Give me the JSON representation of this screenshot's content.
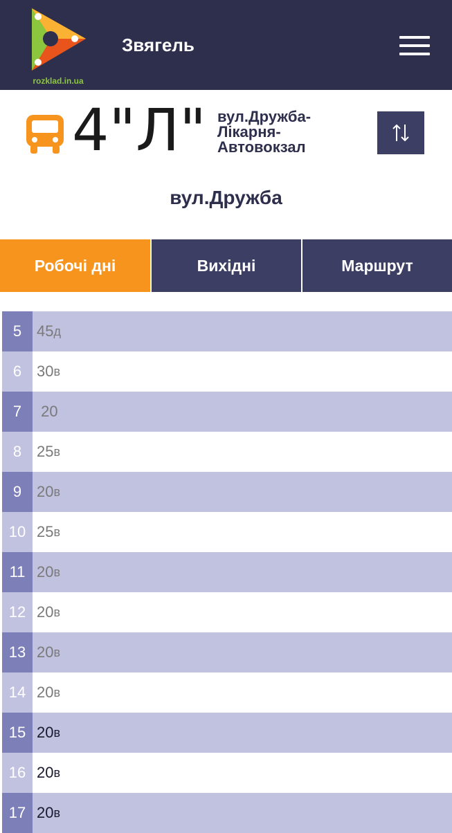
{
  "header": {
    "logo_text": "rozklad.in.ua",
    "city": "Звягель"
  },
  "route": {
    "number": "4\"Л\"",
    "name_lines": [
      "вул.Дружба-",
      "Лікарня-",
      "Автовокзал"
    ],
    "stop": "вул.Дружба"
  },
  "tabs": [
    {
      "label": "Робочі дні",
      "active": true
    },
    {
      "label": "Вихідні",
      "active": false
    },
    {
      "label": "Маршрут",
      "active": false
    }
  ],
  "schedule": [
    {
      "hour": "5",
      "minute": "45",
      "suffix": "д"
    },
    {
      "hour": "6",
      "minute": "30",
      "suffix": "в"
    },
    {
      "hour": "7",
      "minute": " 20",
      "suffix": ""
    },
    {
      "hour": "8",
      "minute": "25",
      "suffix": "в"
    },
    {
      "hour": "9",
      "minute": "20",
      "suffix": "в"
    },
    {
      "hour": "10",
      "minute": "25",
      "suffix": "в"
    },
    {
      "hour": "11",
      "minute": "20",
      "suffix": "в"
    },
    {
      "hour": "12",
      "minute": "20",
      "suffix": "в"
    },
    {
      "hour": "13",
      "minute": "20",
      "suffix": "в"
    },
    {
      "hour": "14",
      "minute": "20",
      "suffix": "в"
    },
    {
      "hour": "15",
      "minute": "20",
      "suffix": "в"
    },
    {
      "hour": "16",
      "minute": "20",
      "suffix": "в"
    },
    {
      "hour": "17",
      "minute": "20",
      "suffix": "в"
    }
  ],
  "colors": {
    "header_bg": "#2e2f4d",
    "accent_orange": "#f7941d",
    "tab_bg": "#3c3f63",
    "row_light": "#c1c2e0",
    "hour_dark": "#7d7fb8"
  },
  "icons": {
    "logo": "play-triangle-logo",
    "menu": "hamburger-menu-icon",
    "bus": "bus-icon",
    "swap": "swap-direction-icon"
  }
}
